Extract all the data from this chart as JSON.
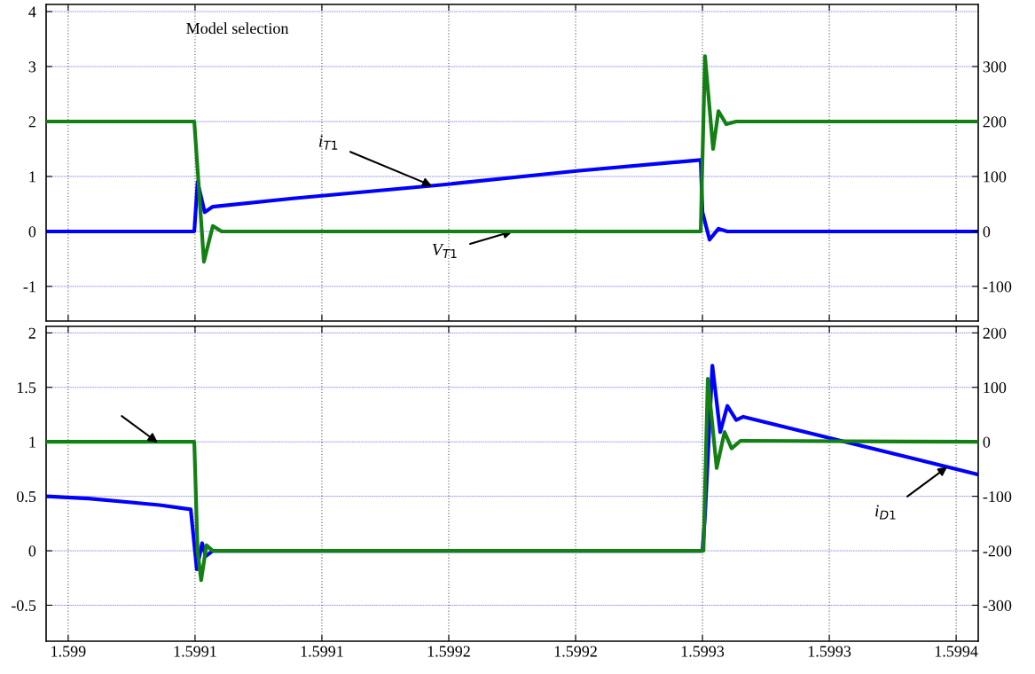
{
  "chart_data": [
    {
      "type": "line",
      "tick_labels": "y",
      "grid": true,
      "legend": false,
      "xlim": [
        1.5989913,
        1.5993587
      ],
      "xticks": [
        {
          "value": 1.599,
          "label": null
        },
        {
          "value": 1.59905,
          "label": null
        },
        {
          "value": 1.5991,
          "label": null
        },
        {
          "value": 1.59915,
          "label": null
        },
        {
          "value": 1.5992,
          "label": null
        },
        {
          "value": 1.59925,
          "label": null
        },
        {
          "value": 1.5993,
          "label": null
        },
        {
          "value": 1.59935,
          "label": null
        }
      ],
      "ylim": [
        -1.63,
        4.13
      ],
      "yticks": [
        -1,
        0,
        1,
        2,
        3,
        4
      ],
      "y2lim": [
        -163,
        413
      ],
      "y2ticks": [
        -100,
        0,
        100,
        200,
        300
      ],
      "annotations": [
        "Model selection",
        {
          "text": "i$_{T1}$",
          "x": 1.5991434,
          "y": 0.83
        },
        {
          "text": "V$_{T1}$",
          "x": 1.5991752,
          "y": 0
        }
      ],
      "series": [
        {
          "color": "#0000ff",
          "axis": "y",
          "x": [
            1.5989913,
            1.5990497,
            1.599051,
            1.5990538,
            1.599057,
            1.5990885,
            1.5991479,
            1.5992004,
            1.5992493,
            1.59925,
            1.5992528,
            1.5992563,
            1.5992598,
            1.5993587
          ],
          "values": [
            0,
            0,
            0.9,
            0.35,
            0.45,
            0.6,
            0.85,
            1.1,
            1.3,
            0.35,
            -0.15,
            0.05,
            0,
            0
          ]
        },
        {
          "color": "#138013",
          "axis": "y2",
          "x": [
            1.5989913,
            1.5990497,
            1.5990535,
            1.599057,
            1.5990605,
            1.5992493,
            1.599251,
            1.5992542,
            1.5992563,
            1.5992594,
            1.5992633,
            1.5993587
          ],
          "values": [
            200,
            200,
            -55,
            10,
            0,
            0,
            319,
            150,
            219,
            195,
            200,
            200
          ]
        }
      ]
    },
    {
      "type": "line",
      "grid": true,
      "legend": false,
      "xlim": [
        1.5989913,
        1.5993587
      ],
      "xticks": [
        {
          "value": 1.599,
          "label": "1.599"
        },
        {
          "value": 1.59905,
          "label": "1.5991"
        },
        {
          "value": 1.5991,
          "label": "1.5991"
        },
        {
          "value": 1.59915,
          "label": "1.5992"
        },
        {
          "value": 1.5992,
          "label": "1.5992"
        },
        {
          "value": 1.59925,
          "label": "1.5993"
        },
        {
          "value": 1.5993,
          "label": "1.5993"
        },
        {
          "value": 1.59935,
          "label": "1.5994"
        }
      ],
      "ylim": [
        -0.83,
        2.06
      ],
      "yticks": [
        -0.5,
        0,
        0.5,
        1,
        1.5,
        2
      ],
      "y2lim": [
        -366,
        212
      ],
      "y2ticks": [
        -300,
        -200,
        -100,
        0,
        100,
        200
      ],
      "annotations": [
        {
          "text": "i$_{D1}$",
          "x": 1.5993465,
          "y": 0.77
        }
      ],
      "series": [
        {
          "color": "#0000ff",
          "axis": "y",
          "x": [
            1.5989913,
            1.599008,
            1.599022,
            1.599036,
            1.5990483,
            1.5990507,
            1.5990528,
            1.5990542,
            1.599057,
            1.59925,
            1.599251,
            1.5992539,
            1.599257,
            1.5992598,
            1.5992633,
            1.5992661,
            1.5993587
          ],
          "values": [
            0.5,
            0.48,
            0.45,
            0.42,
            0.38,
            -0.17,
            0.07,
            -0.05,
            0,
            0,
            0.32,
            1.7,
            1.09,
            1.33,
            1.2,
            1.23,
            0.7
          ]
        },
        {
          "color": "#138013",
          "axis": "y2",
          "x": [
            1.5989913,
            1.5990497,
            1.599051,
            1.5990524,
            1.5990545,
            1.599057,
            1.5992504,
            1.5992521,
            1.5992556,
            1.5992587,
            1.5992615,
            1.599265,
            1.5993587
          ],
          "values": [
            0,
            0,
            -200,
            -254,
            -190,
            -200,
            -200,
            116,
            -48,
            18,
            -12,
            2,
            0
          ]
        }
      ]
    }
  ]
}
